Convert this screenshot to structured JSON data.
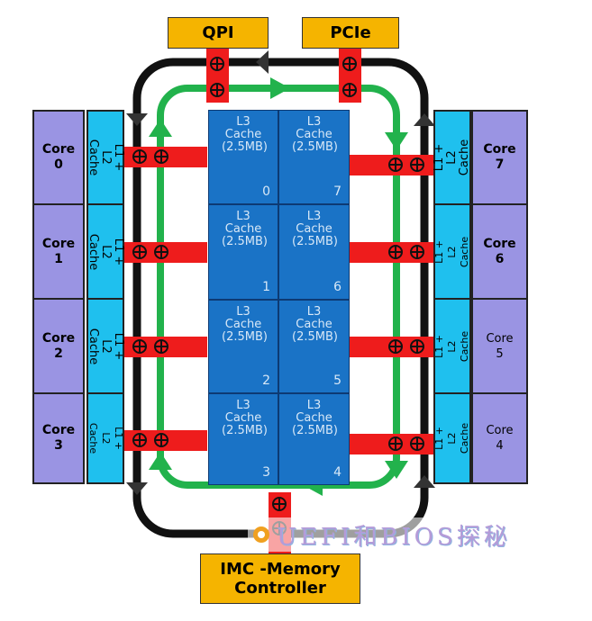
{
  "labels": {
    "qpi": "QPI",
    "pcie": "PCIe",
    "imc": "IMC -Memory Controller"
  },
  "left_cores": [
    {
      "label": "Core",
      "num": "0"
    },
    {
      "label": "Core",
      "num": "1"
    },
    {
      "label": "Core",
      "num": "2"
    },
    {
      "label": "Core",
      "num": "3"
    }
  ],
  "right_cores": [
    {
      "label": "Core",
      "num": "7"
    },
    {
      "label": "Core",
      "num": "6"
    },
    {
      "label": "Core",
      "num": "5"
    },
    {
      "label": "Core",
      "num": "4"
    }
  ],
  "left_l12": [
    "L1 + L2 Cache",
    "L1 + L2 Cache",
    "L1 + L2 Cache",
    "L1 + L2 Cache"
  ],
  "right_l12": [
    "L1 + L2 Cache",
    "L1 + L2 Cache",
    "L1 + L2 Cache",
    "L1 + L2 Cache"
  ],
  "l3_slices": [
    {
      "text": "L3 Cache (2.5MB)",
      "num": "0"
    },
    {
      "text": "L3 Cache (2.5MB)",
      "num": "7"
    },
    {
      "text": "L3 Cache (2.5MB)",
      "num": "1"
    },
    {
      "text": "L3 Cache (2.5MB)",
      "num": "6"
    },
    {
      "text": "L3 Cache (2.5MB)",
      "num": "2"
    },
    {
      "text": "L3 Cache (2.5MB)",
      "num": "5"
    },
    {
      "text": "L3 Cache (2.5MB)",
      "num": "3"
    },
    {
      "text": "L3 Cache (2.5MB)",
      "num": "4"
    }
  ],
  "watermark": "UEFI和BIOS探秘",
  "colors": {
    "core": "#9a94e3",
    "l12_cache": "#1fc0ee",
    "l3_cache": "#1a73c6",
    "outer_ring": "#111111",
    "inner_ring": "#22b24c",
    "ring_stop": "#ee1c1c",
    "label_box": "#f5b400"
  }
}
